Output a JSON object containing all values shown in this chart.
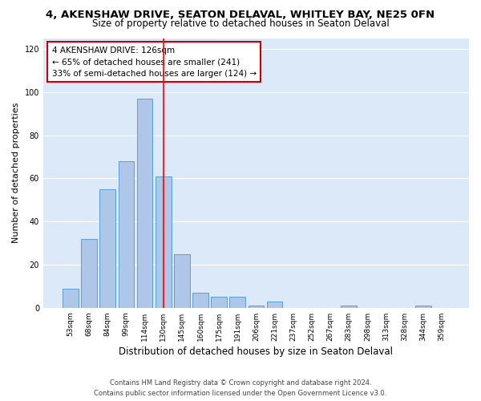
{
  "title": "4, AKENSHAW DRIVE, SEATON DELAVAL, WHITLEY BAY, NE25 0FN",
  "subtitle": "Size of property relative to detached houses in Seaton Delaval",
  "xlabel": "Distribution of detached houses by size in Seaton Delaval",
  "ylabel": "Number of detached properties",
  "bar_labels": [
    "53sqm",
    "68sqm",
    "84sqm",
    "99sqm",
    "114sqm",
    "130sqm",
    "145sqm",
    "160sqm",
    "175sqm",
    "191sqm",
    "206sqm",
    "221sqm",
    "237sqm",
    "252sqm",
    "267sqm",
    "283sqm",
    "298sqm",
    "313sqm",
    "328sqm",
    "344sqm",
    "359sqm"
  ],
  "bar_heights": [
    9,
    32,
    55,
    68,
    97,
    61,
    25,
    7,
    5,
    5,
    1,
    3,
    0,
    0,
    0,
    1,
    0,
    0,
    0,
    1,
    0
  ],
  "bar_color": "#aec6e8",
  "bar_edge_color": "#5a9fd4",
  "red_line_index": 5,
  "annotation_text": "4 AKENSHAW DRIVE: 126sqm\n← 65% of detached houses are smaller (241)\n33% of semi-detached houses are larger (124) →",
  "annotation_box_color": "#ffffff",
  "annotation_box_edge_color": "#cc0000",
  "ylim": [
    0,
    125
  ],
  "yticks": [
    0,
    20,
    40,
    60,
    80,
    100,
    120
  ],
  "footer_line1": "Contains HM Land Registry data © Crown copyright and database right 2024.",
  "footer_line2": "Contains public sector information licensed under the Open Government Licence v3.0.",
  "background_color": "#dce9f8",
  "title_fontsize": 9.5,
  "subtitle_fontsize": 8.5,
  "tick_fontsize": 6.5,
  "ylabel_fontsize": 8,
  "xlabel_fontsize": 8.5,
  "annotation_fontsize": 7.5,
  "footer_fontsize": 6
}
